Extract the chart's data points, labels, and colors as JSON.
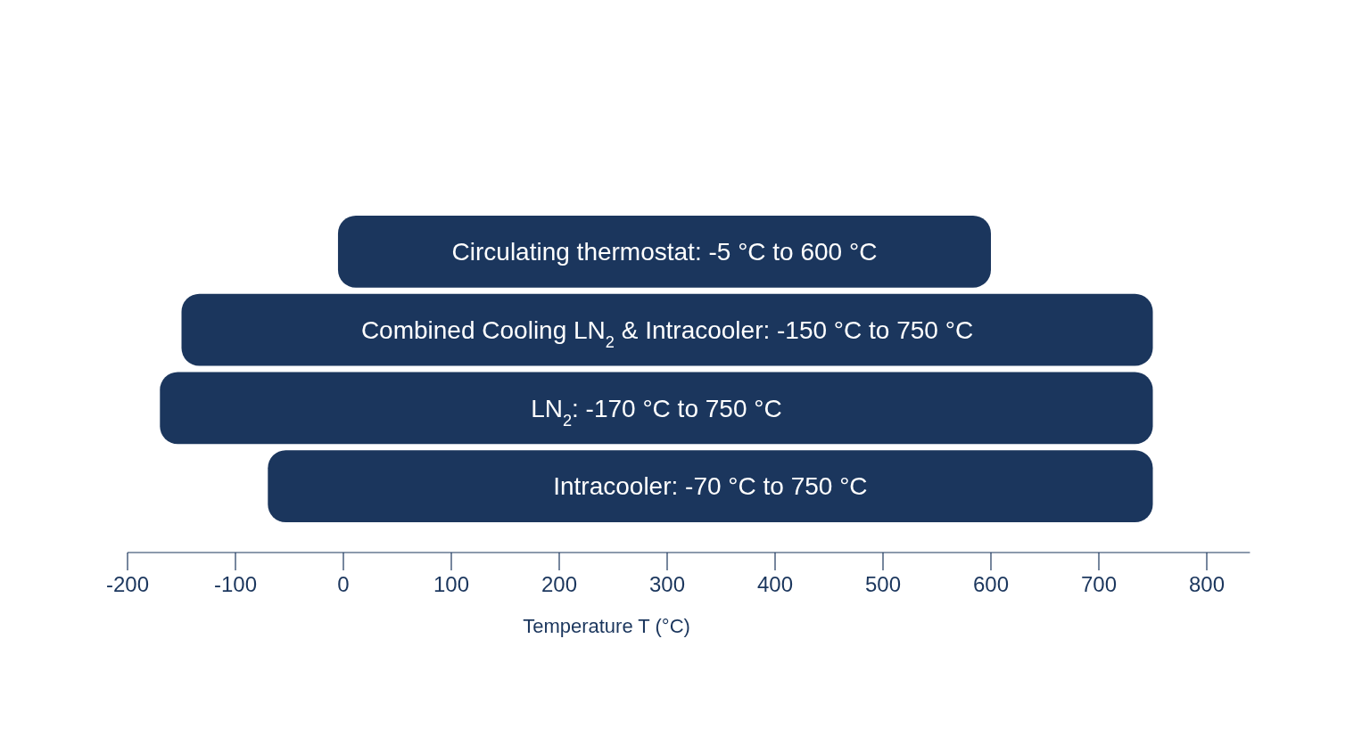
{
  "chart_data": {
    "type": "bar",
    "orientation": "horizontal",
    "xlabel": "Temperature T (°C)",
    "categories": [
      "Circulating thermostat: -5 °C to 600 °C",
      "Combined Cooling LN$_{2}$ & Intracooler: -150 °C to 750 °C",
      "LN$_{2}$: -170 °C to 750 °C",
      "Intracooler: -70 °C to 750 °C"
    ],
    "base": [
      -5,
      -150,
      -170,
      -70
    ],
    "values": [
      605,
      900,
      920,
      820
    ],
    "color": "#1b365d",
    "xlim": [
      -200,
      840
    ],
    "xticks": [
      -200,
      -100,
      0,
      100,
      200,
      300,
      400,
      500,
      600,
      700,
      800
    ],
    "grid": false
  }
}
